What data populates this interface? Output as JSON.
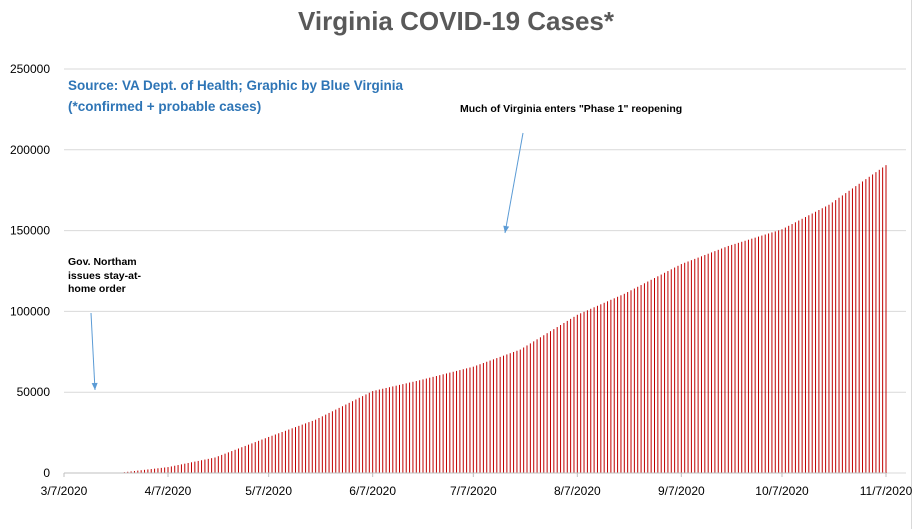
{
  "chart_data": {
    "type": "bar",
    "title": "Virginia COVID-19 Cases*",
    "xlabel": "",
    "ylabel": "",
    "ylim": [
      0,
      250000
    ],
    "yticks": [
      "0",
      "50000",
      "100000",
      "150000",
      "200000",
      "250000"
    ],
    "xticks": [
      "3/7/2020",
      "4/7/2020",
      "5/7/2020",
      "6/7/2020",
      "7/7/2020",
      "8/7/2020",
      "9/7/2020",
      "10/7/2020",
      "11/7/2020"
    ],
    "x_start": "2020-03-07",
    "x_end": "2020-11-07",
    "grid": true,
    "bar_color": "#c00000",
    "series": [
      {
        "values_at_points": [
          {
            "date": "2020-03-07",
            "value": 0
          },
          {
            "date": "2020-03-24",
            "value": 290
          },
          {
            "date": "2020-04-07",
            "value": 3650
          },
          {
            "date": "2020-04-21",
            "value": 9600
          },
          {
            "date": "2020-05-07",
            "value": 22300
          },
          {
            "date": "2020-05-21",
            "value": 33000
          },
          {
            "date": "2020-06-07",
            "value": 50700
          },
          {
            "date": "2020-06-21",
            "value": 57400
          },
          {
            "date": "2020-07-07",
            "value": 65800
          },
          {
            "date": "2020-07-21",
            "value": 76400
          },
          {
            "date": "2020-08-07",
            "value": 97900
          },
          {
            "date": "2020-08-21",
            "value": 110900
          },
          {
            "date": "2020-09-07",
            "value": 129300
          },
          {
            "date": "2020-09-21",
            "value": 140500
          },
          {
            "date": "2020-10-07",
            "value": 150800
          },
          {
            "date": "2020-10-21",
            "value": 166000
          },
          {
            "date": "2020-11-07",
            "value": 190500
          }
        ]
      }
    ]
  },
  "source_line1": "Source: VA Dept. of Health; Graphic by Blue Virginia",
  "source_line2": "(*confirmed + probable cases)",
  "annotation_stay_home": "Gov. Northam issues stay-at-home order",
  "annotation_phase1": "Much of Virginia enters \"Phase 1\" reopening",
  "arrow_color": "#5b9bd5"
}
